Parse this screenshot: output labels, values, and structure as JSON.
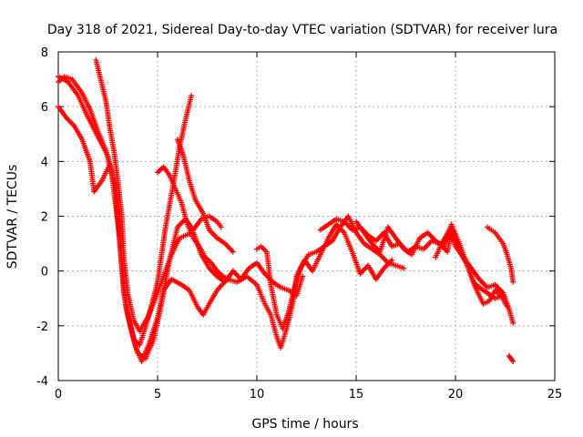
{
  "chart_data": {
    "type": "scatter",
    "title": "Day 318 of 2021, Sidereal Day-to-day VTEC variation (SDTVAR) for receiver lura",
    "xlabel": "GPS time / hours",
    "ylabel": "SDTVAR / TECUs",
    "xlim": [
      0,
      25
    ],
    "ylim": [
      -4,
      8
    ],
    "x_ticks": [
      0,
      5,
      10,
      15,
      20,
      25
    ],
    "y_ticks": [
      -4,
      -2,
      0,
      2,
      4,
      6,
      8
    ],
    "grid": true,
    "marker": "+",
    "color": "#ff0000",
    "series": [
      {
        "name": "track-1",
        "points": [
          [
            0.0,
            7.1
          ],
          [
            0.5,
            6.9
          ],
          [
            1.0,
            6.4
          ],
          [
            1.5,
            5.6
          ],
          [
            2.0,
            4.9
          ],
          [
            2.5,
            4.2
          ],
          [
            2.8,
            3.2
          ],
          [
            3.1,
            1.2
          ],
          [
            3.3,
            -0.6
          ],
          [
            3.5,
            -1.6
          ],
          [
            3.8,
            -2.5
          ],
          [
            4.1,
            -2.7
          ],
          [
            4.5,
            -1.8
          ],
          [
            5.0,
            -0.4
          ],
          [
            5.4,
            1.6
          ],
          [
            5.8,
            3.2
          ],
          [
            6.1,
            4.5
          ],
          [
            6.4,
            5.5
          ],
          [
            6.6,
            6.1
          ],
          [
            6.7,
            6.4
          ]
        ]
      },
      {
        "name": "track-2",
        "points": [
          [
            0.0,
            6.9
          ],
          [
            0.3,
            7.1
          ],
          [
            0.7,
            7.0
          ],
          [
            1.2,
            6.5
          ],
          [
            1.6,
            5.9
          ],
          [
            2.0,
            5.1
          ],
          [
            2.4,
            4.4
          ],
          [
            2.7,
            3.5
          ],
          [
            3.0,
            1.8
          ],
          [
            3.2,
            0.2
          ],
          [
            3.4,
            -1.3
          ],
          [
            3.7,
            -2.2
          ],
          [
            4.0,
            -3.0
          ],
          [
            4.4,
            -3.2
          ],
          [
            4.8,
            -2.5
          ],
          [
            5.2,
            -1.2
          ],
          [
            5.6,
            0.4
          ],
          [
            6.0,
            1.6
          ],
          [
            6.4,
            1.9
          ],
          [
            6.8,
            1.5
          ],
          [
            7.2,
            1.9
          ],
          [
            7.6,
            2.0
          ],
          [
            8.0,
            1.8
          ],
          [
            8.2,
            1.6
          ]
        ]
      },
      {
        "name": "track-3",
        "points": [
          [
            0.0,
            6.0
          ],
          [
            0.4,
            5.6
          ],
          [
            0.8,
            5.3
          ],
          [
            1.2,
            4.8
          ],
          [
            1.6,
            4.0
          ],
          [
            1.8,
            2.9
          ],
          [
            2.2,
            3.3
          ],
          [
            2.6,
            3.9
          ],
          [
            2.9,
            3.0
          ],
          [
            3.1,
            1.0
          ],
          [
            3.3,
            -0.8
          ],
          [
            3.6,
            -1.9
          ],
          [
            3.9,
            -2.8
          ],
          [
            4.2,
            -3.3
          ],
          [
            4.6,
            -2.6
          ],
          [
            5.0,
            -1.7
          ],
          [
            5.3,
            -0.7
          ],
          [
            5.7,
            -0.3
          ],
          [
            6.2,
            -0.5
          ],
          [
            6.6,
            -0.7
          ],
          [
            7.0,
            -1.3
          ],
          [
            7.3,
            -1.6
          ],
          [
            7.6,
            -1.2
          ],
          [
            8.0,
            -0.7
          ],
          [
            8.5,
            -0.3
          ],
          [
            9.0,
            -0.4
          ],
          [
            9.5,
            -0.2
          ],
          [
            10.0,
            -0.5
          ],
          [
            10.4,
            -1.2
          ],
          [
            10.7,
            -1.6
          ],
          [
            11.0,
            -2.4
          ],
          [
            11.2,
            -2.8
          ],
          [
            11.5,
            -2.1
          ],
          [
            11.8,
            -1.2
          ],
          [
            12.0,
            -0.2
          ],
          [
            12.4,
            0.4
          ],
          [
            12.8,
            0.0
          ],
          [
            13.2,
            0.6
          ],
          [
            13.6,
            1.2
          ],
          [
            14.0,
            1.7
          ],
          [
            14.4,
            1.4
          ],
          [
            14.8,
            0.7
          ],
          [
            15.2,
            -0.1
          ],
          [
            15.6,
            0.2
          ],
          [
            16.0,
            -0.3
          ],
          [
            16.4,
            0.1
          ],
          [
            16.8,
            0.4
          ]
        ]
      },
      {
        "name": "track-4",
        "points": [
          [
            1.9,
            7.7
          ],
          [
            2.1,
            7.1
          ],
          [
            2.4,
            6.2
          ],
          [
            2.6,
            5.2
          ],
          [
            2.8,
            4.4
          ],
          [
            3.0,
            3.3
          ],
          [
            3.2,
            2.0
          ],
          [
            3.3,
            0.5
          ],
          [
            3.5,
            -0.8
          ],
          [
            3.8,
            -1.8
          ],
          [
            4.1,
            -2.2
          ],
          [
            4.5,
            -1.7
          ],
          [
            4.9,
            -1.0
          ],
          [
            5.3,
            -0.2
          ],
          [
            5.7,
            0.6
          ],
          [
            6.1,
            1.2
          ],
          [
            6.4,
            1.3
          ],
          [
            6.8,
            1.4
          ],
          [
            7.2,
            0.6
          ],
          [
            7.6,
            0.1
          ],
          [
            8.0,
            -0.2
          ],
          [
            8.4,
            -0.4
          ],
          [
            8.8,
            0.0
          ],
          [
            9.2,
            -0.3
          ],
          [
            9.6,
            0.1
          ],
          [
            10.0,
            0.3
          ],
          [
            10.4,
            -0.1
          ],
          [
            10.8,
            -0.4
          ],
          [
            11.2,
            -0.6
          ],
          [
            11.6,
            -0.7
          ],
          [
            12.0,
            -0.9
          ],
          [
            12.3,
            -0.2
          ]
        ]
      },
      {
        "name": "track-5",
        "points": [
          [
            5.0,
            3.6
          ],
          [
            5.3,
            3.8
          ],
          [
            5.6,
            3.5
          ],
          [
            5.9,
            3.0
          ],
          [
            6.2,
            2.5
          ],
          [
            6.5,
            1.7
          ],
          [
            6.8,
            1.2
          ],
          [
            7.1,
            0.9
          ],
          [
            7.4,
            0.5
          ],
          [
            7.7,
            0.3
          ],
          [
            8.0,
            0.0
          ],
          [
            8.3,
            -0.2
          ],
          [
            8.6,
            -0.3
          ]
        ]
      },
      {
        "name": "track-6",
        "points": [
          [
            6.0,
            4.8
          ],
          [
            6.3,
            4.2
          ],
          [
            6.6,
            3.3
          ],
          [
            6.9,
            2.6
          ],
          [
            7.3,
            2.1
          ],
          [
            7.6,
            1.5
          ],
          [
            8.0,
            1.2
          ],
          [
            8.4,
            1.0
          ],
          [
            8.8,
            0.7
          ]
        ]
      },
      {
        "name": "track-7",
        "points": [
          [
            10.0,
            0.8
          ],
          [
            10.2,
            0.9
          ],
          [
            10.5,
            0.7
          ],
          [
            10.7,
            -0.5
          ],
          [
            11.0,
            -1.6
          ],
          [
            11.3,
            -2.1
          ],
          [
            11.6,
            -1.5
          ],
          [
            11.9,
            -0.6
          ],
          [
            12.2,
            0.1
          ],
          [
            12.6,
            0.6
          ],
          [
            13.0,
            0.7
          ],
          [
            13.4,
            0.9
          ],
          [
            13.8,
            1.1
          ],
          [
            14.2,
            1.6
          ],
          [
            14.6,
            2.0
          ],
          [
            15.0,
            1.4
          ],
          [
            15.4,
            1.0
          ],
          [
            15.8,
            0.8
          ],
          [
            16.2,
            0.6
          ],
          [
            16.6,
            0.3
          ],
          [
            17.0,
            0.2
          ],
          [
            17.4,
            0.1
          ]
        ]
      },
      {
        "name": "track-8",
        "points": [
          [
            13.2,
            1.5
          ],
          [
            13.6,
            1.7
          ],
          [
            14.0,
            1.9
          ],
          [
            14.4,
            1.8
          ],
          [
            14.8,
            1.5
          ],
          [
            15.2,
            1.6
          ],
          [
            15.6,
            1.3
          ],
          [
            16.0,
            1.1
          ],
          [
            16.4,
            1.4
          ],
          [
            16.8,
            0.9
          ],
          [
            17.2,
            1.0
          ],
          [
            17.6,
            0.7
          ],
          [
            18.0,
            0.9
          ],
          [
            18.4,
            0.8
          ],
          [
            18.8,
            1.1
          ],
          [
            19.2,
            1.0
          ],
          [
            19.6,
            0.7
          ],
          [
            19.8,
            1.5
          ],
          [
            20.0,
            1.2
          ],
          [
            20.3,
            0.6
          ],
          [
            20.6,
            0.2
          ],
          [
            20.9,
            -0.4
          ],
          [
            21.2,
            -0.6
          ],
          [
            21.6,
            -0.8
          ],
          [
            22.0,
            -1.0
          ],
          [
            22.4,
            -0.9
          ]
        ]
      },
      {
        "name": "track-9",
        "points": [
          [
            15.0,
            1.8
          ],
          [
            15.4,
            1.4
          ],
          [
            15.8,
            1.0
          ],
          [
            16.2,
            0.7
          ],
          [
            16.6,
            1.6
          ],
          [
            17.0,
            1.2
          ],
          [
            17.4,
            0.8
          ],
          [
            17.8,
            0.6
          ],
          [
            18.2,
            1.2
          ],
          [
            18.6,
            1.4
          ],
          [
            19.0,
            1.1
          ],
          [
            19.4,
            0.9
          ],
          [
            19.8,
            1.7
          ],
          [
            20.2,
            1.0
          ],
          [
            20.6,
            0.2
          ],
          [
            21.0,
            -0.6
          ],
          [
            21.4,
            -1.2
          ],
          [
            21.7,
            -1.1
          ],
          [
            22.0,
            -0.7
          ],
          [
            22.3,
            -0.9
          ],
          [
            22.6,
            -1.3
          ]
        ]
      },
      {
        "name": "track-10",
        "points": [
          [
            19.0,
            0.5
          ],
          [
            19.3,
            1.0
          ],
          [
            19.7,
            1.5
          ],
          [
            20.0,
            0.9
          ],
          [
            20.4,
            0.5
          ],
          [
            20.8,
            0.1
          ],
          [
            21.2,
            -0.3
          ],
          [
            21.6,
            -0.6
          ],
          [
            22.0,
            -0.5
          ],
          [
            22.4,
            -0.8
          ],
          [
            22.7,
            -1.4
          ],
          [
            22.9,
            -1.9
          ]
        ]
      },
      {
        "name": "track-11",
        "points": [
          [
            21.6,
            1.6
          ],
          [
            21.8,
            1.5
          ],
          [
            22.0,
            1.4
          ],
          [
            22.2,
            1.2
          ],
          [
            22.4,
            1.0
          ],
          [
            22.6,
            0.6
          ],
          [
            22.8,
            0.1
          ],
          [
            22.9,
            -0.4
          ]
        ]
      },
      {
        "name": "track-12",
        "points": [
          [
            22.7,
            -3.1
          ],
          [
            22.8,
            -3.2
          ],
          [
            22.9,
            -3.3
          ]
        ]
      }
    ]
  }
}
